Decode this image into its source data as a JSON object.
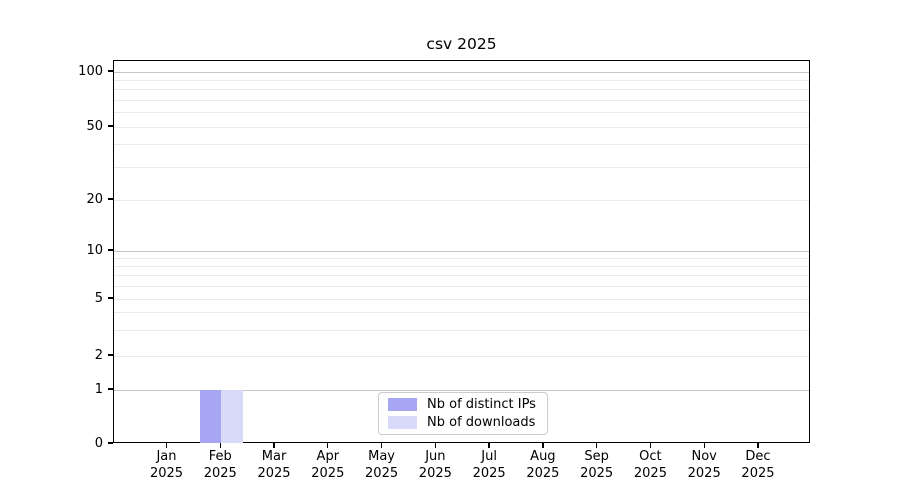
{
  "chart_data": {
    "type": "bar",
    "title": "csv 2025",
    "x_categories": [
      {
        "month": "Jan",
        "year": "2025"
      },
      {
        "month": "Feb",
        "year": "2025"
      },
      {
        "month": "Mar",
        "year": "2025"
      },
      {
        "month": "Apr",
        "year": "2025"
      },
      {
        "month": "May",
        "year": "2025"
      },
      {
        "month": "Jun",
        "year": "2025"
      },
      {
        "month": "Jul",
        "year": "2025"
      },
      {
        "month": "Aug",
        "year": "2025"
      },
      {
        "month": "Sep",
        "year": "2025"
      },
      {
        "month": "Oct",
        "year": "2025"
      },
      {
        "month": "Nov",
        "year": "2025"
      },
      {
        "month": "Dec",
        "year": "2025"
      }
    ],
    "series": [
      {
        "name": "Nb of distinct IPs",
        "color": "#a6a6f2",
        "values": [
          0,
          1,
          0,
          0,
          0,
          0,
          0,
          0,
          0,
          0,
          0,
          0
        ]
      },
      {
        "name": "Nb of downloads",
        "color": "#d9d9f9",
        "values": [
          0,
          1,
          0,
          0,
          0,
          0,
          0,
          0,
          0,
          0,
          0,
          0
        ]
      }
    ],
    "yticks": [
      0,
      1,
      2,
      5,
      10,
      20,
      50,
      100
    ],
    "y_gridlines": {
      "major": [
        1,
        10,
        100
      ],
      "minor": [
        2,
        3,
        4,
        5,
        6,
        7,
        8,
        9,
        20,
        30,
        40,
        50,
        60,
        70,
        80,
        90
      ]
    },
    "yscale": "symlog",
    "ylim": [
      0,
      115
    ],
    "xlabel": "",
    "ylabel": "",
    "grid": "horizontal only",
    "legend_position": "inside bottom-center"
  },
  "palette": {
    "spine": "#000000",
    "grid_major": "#c6c6c6",
    "grid_minor": "#eaeaea",
    "background": "#ffffff"
  }
}
